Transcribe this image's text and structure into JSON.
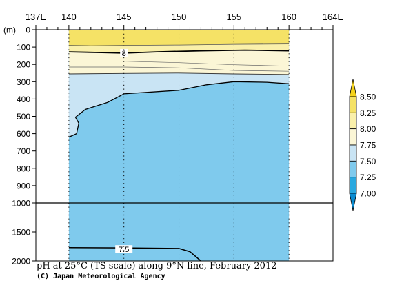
{
  "chart_data": {
    "type": "heatmap",
    "title": "pH at 25°C (TS scale) along 9°N line, February 2012",
    "credit": "(C) Japan Meteorological Agency",
    "x_axis": {
      "min": 137,
      "max": 164,
      "tick_labels": [
        {
          "value": 137,
          "text": "137E"
        },
        {
          "value": 140,
          "text": "140"
        },
        {
          "value": 145,
          "text": "145"
        },
        {
          "value": 150,
          "text": "150"
        },
        {
          "value": 155,
          "text": "155"
        },
        {
          "value": 160,
          "text": "160"
        },
        {
          "value": 164,
          "text": "164E"
        }
      ],
      "minor_ticks": [
        138,
        139,
        141,
        142,
        143,
        144,
        146,
        147,
        148,
        149,
        151,
        152,
        153,
        154,
        156,
        157,
        158,
        159,
        161,
        162,
        163
      ]
    },
    "y_axis": {
      "unit_label": "(m)",
      "upper_range": [
        0,
        1000
      ],
      "lower_range": [
        1000,
        2000
      ],
      "upper_ticks": [
        0,
        100,
        200,
        300,
        400,
        500,
        600,
        700,
        800,
        900
      ],
      "lower_ticks": [
        1500,
        2000
      ],
      "tick_labels": [
        {
          "value": 0,
          "text": "0"
        },
        {
          "value": 100,
          "text": "100"
        },
        {
          "value": 200,
          "text": "200"
        },
        {
          "value": 300,
          "text": "300"
        },
        {
          "value": 400,
          "text": "400"
        },
        {
          "value": 500,
          "text": "500"
        },
        {
          "value": 600,
          "text": "600"
        },
        {
          "value": 700,
          "text": "700"
        },
        {
          "value": 800,
          "text": "800"
        },
        {
          "value": 900,
          "text": "900"
        },
        {
          "value": 1000,
          "text": "1000"
        },
        {
          "value": 1500,
          "text": "1500"
        },
        {
          "value": 2000,
          "text": "2000"
        }
      ]
    },
    "data_extent": {
      "lon": [
        140,
        160
      ],
      "depth": [
        0,
        2000
      ]
    },
    "station_lons": [
      140,
      145,
      150,
      155,
      160
    ],
    "color_levels": [
      {
        "from": 8.25,
        "to": 8.5,
        "color": "#f5e266"
      },
      {
        "from": 8.0,
        "to": 8.25,
        "color": "#faf0aa"
      },
      {
        "from": 7.75,
        "to": 8.0,
        "color": "#fbf6d6"
      },
      {
        "from": 7.5,
        "to": 7.75,
        "color": "#c9e4f4"
      },
      {
        "from": 7.25,
        "to": 7.5,
        "color": "#7fcaed"
      }
    ],
    "colorbar": {
      "tick_labels": [
        "8.50",
        "8.25",
        "8.00",
        "7.75",
        "7.50",
        "7.25",
        "7.00"
      ],
      "values": [
        8.5,
        8.25,
        8.0,
        7.75,
        7.5,
        7.25,
        7.0
      ],
      "bins": [
        {
          "from": 8.5,
          "to": 8.75,
          "color": "#f5d31c"
        },
        {
          "from": 8.25,
          "to": 8.5,
          "color": "#f5e266"
        },
        {
          "from": 8.0,
          "to": 8.25,
          "color": "#faf0aa"
        },
        {
          "from": 7.75,
          "to": 8.0,
          "color": "#fbf6d6"
        },
        {
          "from": 7.5,
          "to": 7.75,
          "color": "#c9e4f4"
        },
        {
          "from": 7.25,
          "to": 7.5,
          "color": "#7fcaed"
        },
        {
          "from": 7.0,
          "to": 7.25,
          "color": "#29a8df"
        },
        {
          "from": 6.75,
          "to": 7.0,
          "color": "#0a8bd0"
        }
      ]
    },
    "contours": [
      {
        "value": 8.25,
        "label": "",
        "points": [
          [
            140,
            90
          ],
          [
            142,
            92
          ],
          [
            145,
            90
          ],
          [
            150,
            88
          ],
          [
            155,
            84
          ],
          [
            160,
            82
          ]
        ]
      },
      {
        "value": 8.0,
        "label": "8",
        "label_at": [
          145,
          135
        ],
        "points": [
          [
            140,
            128
          ],
          [
            143,
            132
          ],
          [
            145,
            135
          ],
          [
            148,
            128
          ],
          [
            152,
            122
          ],
          [
            156,
            118
          ],
          [
            160,
            122
          ]
        ]
      },
      {
        "value": 7.9,
        "label": "",
        "points": [
          [
            140,
            182
          ],
          [
            145,
            182
          ],
          [
            150,
            190
          ],
          [
            155,
            202
          ],
          [
            160,
            210
          ]
        ]
      },
      {
        "value": 7.8,
        "label": "",
        "points": [
          [
            140,
            215
          ],
          [
            145,
            215
          ],
          [
            150,
            220
          ],
          [
            155,
            235
          ],
          [
            160,
            240
          ]
        ]
      },
      {
        "value": 7.75,
        "label": "",
        "points": [
          [
            140,
            255
          ],
          [
            145,
            252
          ],
          [
            150,
            250
          ],
          [
            155,
            255
          ],
          [
            160,
            258
          ]
        ]
      },
      {
        "value": 7.5,
        "label": "",
        "points": [
          [
            140,
            620
          ],
          [
            140.7,
            600
          ],
          [
            140.9,
            540
          ],
          [
            140.6,
            505
          ],
          [
            141.5,
            460
          ],
          [
            143.5,
            420
          ],
          [
            145,
            370
          ],
          [
            150,
            350
          ],
          [
            152.5,
            318
          ],
          [
            155,
            300
          ],
          [
            158,
            303
          ],
          [
            160,
            312
          ]
        ]
      },
      {
        "value": 7.5,
        "label": "7.5",
        "label_at": [
          145,
          1800
        ],
        "points": [
          [
            140,
            1770
          ],
          [
            145,
            1775
          ],
          [
            150,
            1785
          ],
          [
            151,
            1840
          ],
          [
            152,
            2000
          ]
        ]
      }
    ]
  }
}
